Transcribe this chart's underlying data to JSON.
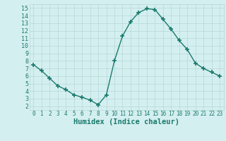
{
  "x": [
    0,
    1,
    2,
    3,
    4,
    5,
    6,
    7,
    8,
    9,
    10,
    11,
    12,
    13,
    14,
    15,
    16,
    17,
    18,
    19,
    20,
    21,
    22,
    23
  ],
  "y": [
    7.5,
    6.7,
    5.7,
    4.7,
    4.2,
    3.5,
    3.2,
    2.8,
    2.2,
    3.5,
    8.0,
    11.3,
    13.2,
    14.4,
    14.9,
    14.8,
    13.5,
    12.2,
    10.7,
    9.5,
    7.7,
    7.0,
    6.5,
    6.0
  ],
  "xlim": [
    -0.5,
    23.5
  ],
  "ylim": [
    1.5,
    15.5
  ],
  "yticks": [
    2,
    3,
    4,
    5,
    6,
    7,
    8,
    9,
    10,
    11,
    12,
    13,
    14,
    15
  ],
  "xticks": [
    0,
    1,
    2,
    3,
    4,
    5,
    6,
    7,
    8,
    9,
    10,
    11,
    12,
    13,
    14,
    15,
    16,
    17,
    18,
    19,
    20,
    21,
    22,
    23
  ],
  "xlabel": "Humidex (Indice chaleur)",
  "line_color": "#1a7a6e",
  "marker": "+",
  "marker_size": 5,
  "bg_color": "#d4efef",
  "grid_color": "#b8d8d8",
  "label_fontsize": 6.5,
  "xlabel_fontsize": 7.5
}
